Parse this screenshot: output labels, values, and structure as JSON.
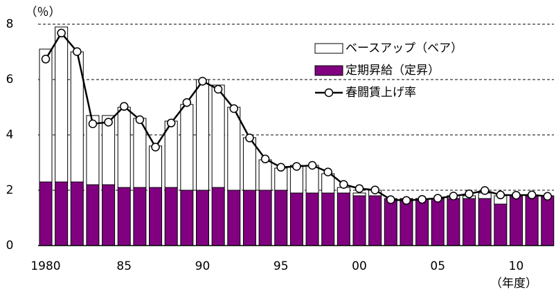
{
  "chart_data": {
    "type": "bar",
    "y_unit_label": "（％）",
    "x_unit_label": "（年度）",
    "categories": [
      "1980",
      null,
      null,
      null,
      null,
      "85",
      null,
      null,
      null,
      null,
      "90",
      null,
      null,
      null,
      null,
      "95",
      null,
      null,
      null,
      null,
      "00",
      null,
      null,
      null,
      null,
      "05",
      null,
      null,
      null,
      null,
      "10",
      null,
      null
    ],
    "series": [
      {
        "name": "ベースアップ（ベア）",
        "type": "bar",
        "color": "#ffffff",
        "values": [
          4.8,
          5.6,
          4.7,
          2.5,
          2.5,
          2.9,
          2.5,
          1.5,
          2.4,
          3.1,
          4.0,
          3.7,
          3.0,
          1.9,
          1.1,
          0.8,
          1.0,
          1.0,
          0.7,
          0.2,
          0.1,
          0.2,
          0,
          0,
          0,
          0,
          0.1,
          0.1,
          0.2,
          0.3,
          0,
          0,
          0
        ]
      },
      {
        "name": "定期昇給（定昇）",
        "type": "bar",
        "color": "#800080",
        "values": [
          2.3,
          2.3,
          2.3,
          2.2,
          2.2,
          2.1,
          2.1,
          2.1,
          2.1,
          2.0,
          2.0,
          2.1,
          2.0,
          2.0,
          2.0,
          2.0,
          1.9,
          1.9,
          1.9,
          1.9,
          1.8,
          1.8,
          1.7,
          1.7,
          1.7,
          1.7,
          1.7,
          1.7,
          1.7,
          1.5,
          1.8,
          1.8,
          1.8
        ]
      },
      {
        "name": "春闘賃上げ率",
        "type": "line",
        "color": "#000000",
        "values": [
          6.74,
          7.68,
          7.01,
          4.4,
          4.46,
          5.03,
          4.55,
          3.56,
          4.43,
          5.17,
          5.94,
          5.65,
          4.95,
          3.89,
          3.13,
          2.83,
          2.86,
          2.9,
          2.66,
          2.21,
          2.06,
          2.01,
          1.66,
          1.63,
          1.67,
          1.71,
          1.79,
          1.87,
          1.99,
          1.83,
          1.82,
          1.83,
          1.78
        ]
      }
    ],
    "ylim": [
      0,
      8
    ],
    "yticks": [
      0,
      2,
      4,
      6,
      8
    ],
    "grid": true,
    "legend": "upper right"
  }
}
